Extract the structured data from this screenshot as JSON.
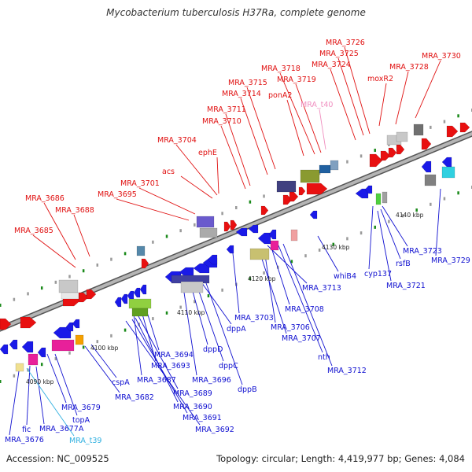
{
  "title": "Mycobacterium tuberculosis H37Ra, complete genome",
  "footer": {
    "accession": "Accession: NC_009525",
    "summary": "Topology: circular; Length: 4,419,977 bp; Genes: 4,084"
  },
  "colors": {
    "forward_label": "#e01010",
    "reverse_label": "#1010d0",
    "trna_forward": "#f090c0",
    "trna_reverse": "#30b0e0",
    "backbone": "#888888",
    "dots": "#1a8a1a"
  },
  "ticks": [
    "4090 kbp",
    "4100 kbp",
    "4110 kbp",
    "4120 kbp",
    "4130 kbp",
    "4140 kbp"
  ],
  "forward_labels": [
    "MRA_3726",
    "MRA_3725",
    "MRA_3730",
    "MRA_3724",
    "MRA_3728",
    "MRA_3718",
    "moxR2",
    "MRA_3719",
    "MRA_3715",
    "MRA_3714",
    "ponA2",
    "MRA_t40",
    "MRA_3711",
    "MRA_3710",
    "MRA_3704",
    "ephE",
    "acs",
    "MRA_3701",
    "MRA_3695",
    "MRA_3686",
    "MRA_3688",
    "MRA_3685"
  ],
  "reverse_labels": [
    "MRA_3723",
    "MRA_3729",
    "rsfB",
    "MRA_3721",
    "cyp137",
    "whiB4",
    "MRA_3713",
    "MRA_3703",
    "MRA_3708",
    "MRA_3706",
    "MRA_3707",
    "nth",
    "MRA_3712",
    "dppA",
    "dppD",
    "dppC",
    "dppB",
    "MRA_3694",
    "MRA_3693",
    "MRA_3696",
    "MRA_3687",
    "MRA_3689",
    "MRA_3690",
    "MRA_3691",
    "MRA_3692",
    "cspA",
    "MRA_3682",
    "topA",
    "MRA_3679",
    "fic",
    "MRA_3677A",
    "MRA_3676",
    "MRA_t39"
  ]
}
